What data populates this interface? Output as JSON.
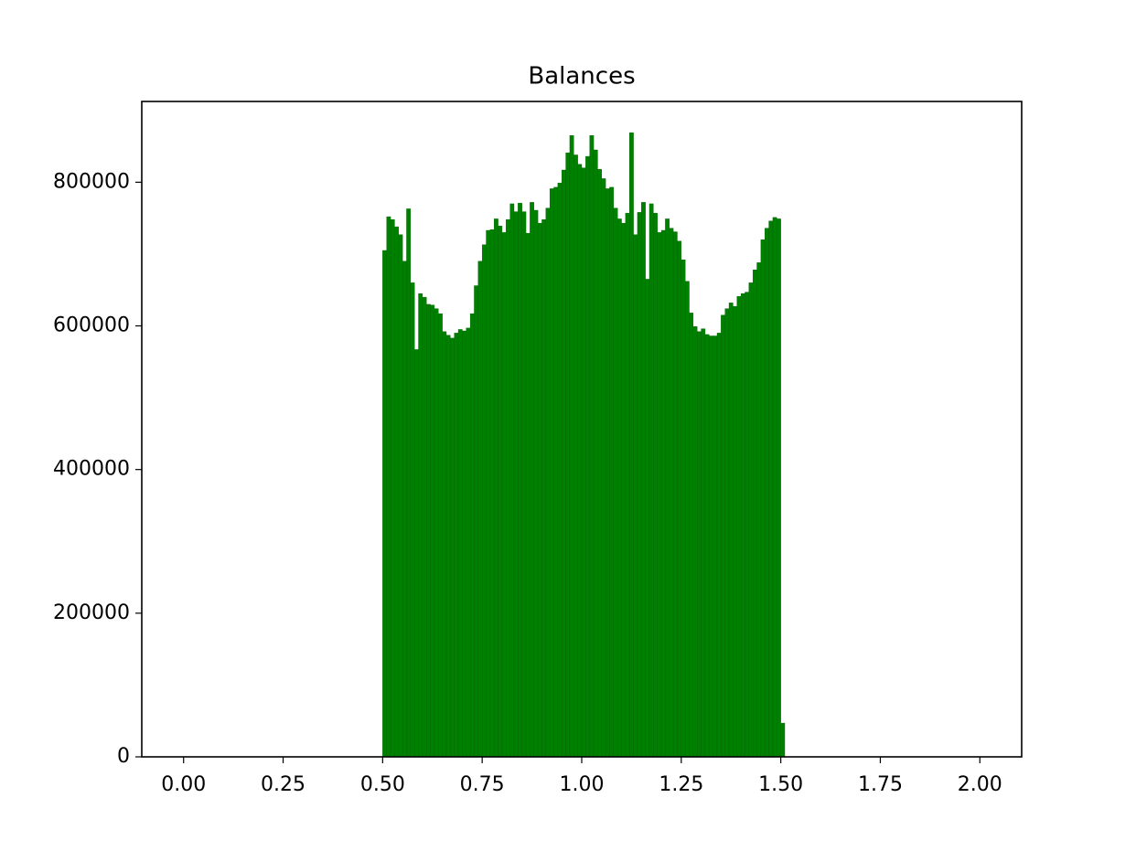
{
  "chart_data": {
    "type": "histogram",
    "title": "Balances",
    "color": "#008000",
    "bins": [
      0.5,
      0.51,
      0.52,
      0.53,
      0.54,
      0.55,
      0.56,
      0.57,
      0.58,
      0.59,
      0.6,
      0.61,
      0.62,
      0.63,
      0.64,
      0.65,
      0.66,
      0.67,
      0.68,
      0.69,
      0.7,
      0.71,
      0.72,
      0.73,
      0.74,
      0.75,
      0.76,
      0.77,
      0.78,
      0.79,
      0.8,
      0.81,
      0.82,
      0.83,
      0.84,
      0.85,
      0.86,
      0.87,
      0.88,
      0.89,
      0.9,
      0.91,
      0.92,
      0.93,
      0.94,
      0.95,
      0.96,
      0.97,
      0.98,
      0.99,
      1.0,
      1.01,
      1.02,
      1.03,
      1.04,
      1.05,
      1.06,
      1.07,
      1.08,
      1.09,
      1.1,
      1.11,
      1.12,
      1.13,
      1.14,
      1.15,
      1.16,
      1.17,
      1.18,
      1.19,
      1.2,
      1.21,
      1.22,
      1.23,
      1.24,
      1.25,
      1.26,
      1.27,
      1.28,
      1.29,
      1.3,
      1.31,
      1.32,
      1.33,
      1.34,
      1.35,
      1.36,
      1.37,
      1.38,
      1.39,
      1.4,
      1.41,
      1.42,
      1.43,
      1.44,
      1.45,
      1.46,
      1.47,
      1.48,
      1.49,
      1.5,
      1.51
    ],
    "values": [
      705000,
      752000,
      748000,
      738000,
      727000,
      690000,
      763000,
      660000,
      567000,
      645000,
      640000,
      630000,
      629000,
      624000,
      617000,
      592000,
      587000,
      583000,
      590000,
      595000,
      593000,
      597000,
      617000,
      656000,
      690000,
      713000,
      733000,
      734000,
      749000,
      739000,
      730000,
      748000,
      770000,
      759000,
      771000,
      759000,
      729000,
      772000,
      761000,
      743000,
      748000,
      764000,
      791000,
      793000,
      799000,
      817000,
      841000,
      865000,
      838000,
      825000,
      820000,
      836000,
      865000,
      845000,
      818000,
      805000,
      791000,
      793000,
      764000,
      749000,
      743000,
      757000,
      869000,
      727000,
      758000,
      772000,
      665000,
      770000,
      757000,
      730000,
      733000,
      749000,
      736000,
      731000,
      718000,
      692000,
      662000,
      618000,
      599000,
      592000,
      596000,
      588000,
      586000,
      586000,
      590000,
      615000,
      624000,
      632000,
      627000,
      641000,
      645000,
      647000,
      660000,
      678000,
      688000,
      720000,
      736000,
      746000,
      751000,
      749000,
      47000
    ],
    "xlim": [
      -0.105,
      2.105
    ],
    "xticks": [
      {
        "value": 0,
        "label": "0.00"
      },
      0.25,
      {
        "value": 0.5,
        "label": "0.50"
      },
      0.75,
      {
        "value": 1,
        "label": "1.00"
      },
      1.25,
      {
        "value": 1.5,
        "label": "1.50"
      },
      1.75,
      {
        "value": 2,
        "label": "2.00"
      }
    ],
    "ylim": [
      0,
      912450
    ],
    "yticks": [
      0,
      200000,
      400000,
      600000,
      800000
    ]
  }
}
